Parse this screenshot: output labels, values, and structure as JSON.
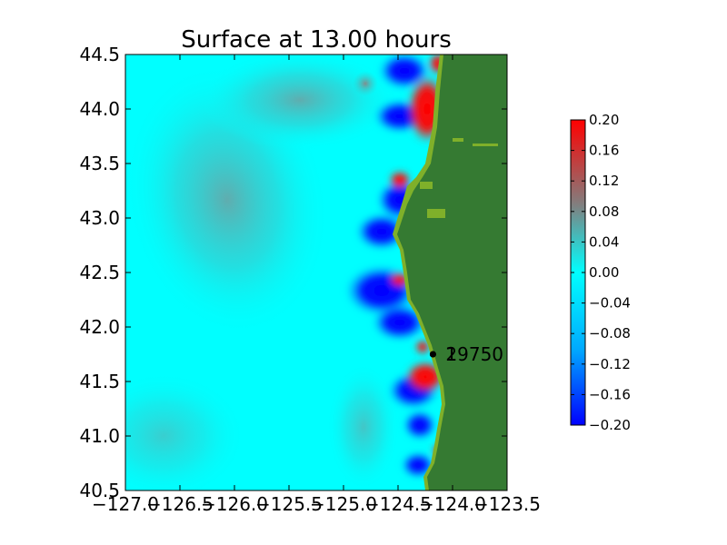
{
  "chart_data": {
    "type": "heatmap",
    "title": "Surface at 13.00 hours",
    "xlabel": "",
    "ylabel": "",
    "xlim": [
      -127.0,
      -123.5
    ],
    "ylim": [
      40.5,
      44.5
    ],
    "x_ticks": [
      "−127.0",
      "−126.5",
      "−126.0",
      "−125.5",
      "−125.0",
      "−124.5",
      "−124.0",
      "−123.5"
    ],
    "x_tick_values": [
      -127.0,
      -126.5,
      -126.0,
      -125.5,
      -125.0,
      -124.5,
      -124.0,
      -123.5
    ],
    "y_ticks": [
      "40.5",
      "41.0",
      "41.5",
      "42.0",
      "42.5",
      "43.0",
      "43.5",
      "44.0",
      "44.5"
    ],
    "y_tick_values": [
      40.5,
      41.0,
      41.5,
      42.0,
      42.5,
      43.0,
      43.5,
      44.0,
      44.5
    ],
    "grid": false,
    "colorbar": {
      "vmin": -0.2,
      "vmax": 0.2,
      "ticks": [
        "−0.20",
        "−0.16",
        "−0.12",
        "−0.08",
        "−0.04",
        "0.00",
        "0.04",
        "0.08",
        "0.12",
        "0.16",
        "0.20"
      ],
      "tick_values": [
        -0.2,
        -0.16,
        -0.12,
        -0.08,
        -0.04,
        0.0,
        0.04,
        0.08,
        0.12,
        0.16,
        0.2
      ],
      "colors": [
        "#0000ff",
        "#00aaff",
        "#00ffff",
        "#808080",
        "#ff0000"
      ]
    },
    "land_color": "#357a32",
    "shore_color": "#7fb02a",
    "gauges": [
      {
        "label": "2",
        "lon": -124.18,
        "lat": 41.75
      },
      {
        "label": "19750",
        "lon": -124.18,
        "lat": 41.75
      }
    ]
  }
}
